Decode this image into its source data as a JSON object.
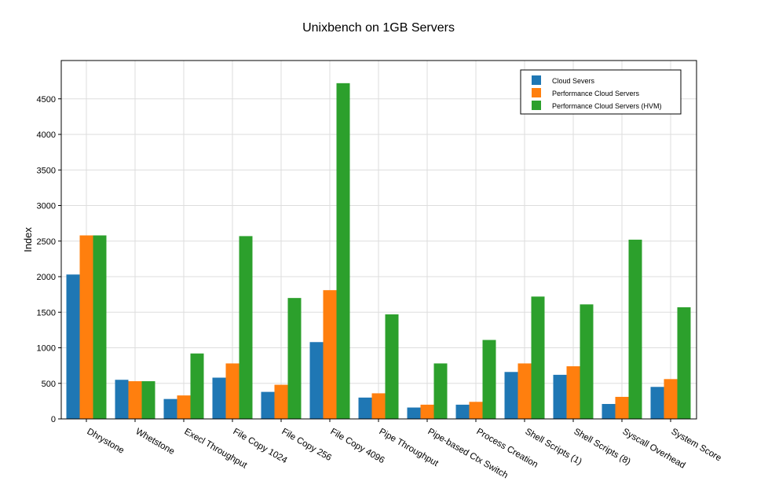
{
  "chart_data": {
    "type": "bar",
    "title": "Unixbench on 1GB Servers",
    "xlabel": "",
    "ylabel": "Index",
    "ylim": [
      0,
      4800
    ],
    "yticks": [
      0,
      500,
      1000,
      1500,
      2000,
      2500,
      3000,
      3500,
      4000,
      4500
    ],
    "grid": true,
    "legend_position": "top-right",
    "categories": [
      "Dhrystone",
      "Whetstone",
      "Execl Throughput",
      "File Copy 1024",
      "File Copy 256",
      "File Copy 4096",
      "Pipe Throughput",
      "Pipe-based Ctx Switch",
      "Process Creation",
      "Shell Scripts (1)",
      "Shell Scripts (8)",
      "Syscall Overhead",
      "System Score"
    ],
    "series": [
      {
        "name": "Cloud Severs",
        "color": "#1f77b4",
        "values": [
          2030,
          550,
          280,
          580,
          380,
          1080,
          300,
          160,
          200,
          660,
          620,
          210,
          450
        ]
      },
      {
        "name": "Performance Cloud Servers",
        "color": "#ff7f0e",
        "values": [
          2580,
          530,
          330,
          780,
          480,
          1810,
          360,
          200,
          240,
          780,
          740,
          310,
          560
        ]
      },
      {
        "name": "Performance Cloud Servers (HVM)",
        "color": "#2ca02c",
        "values": [
          2580,
          530,
          920,
          2570,
          1700,
          4720,
          1470,
          780,
          1110,
          1720,
          1610,
          2520,
          1570
        ]
      }
    ]
  }
}
